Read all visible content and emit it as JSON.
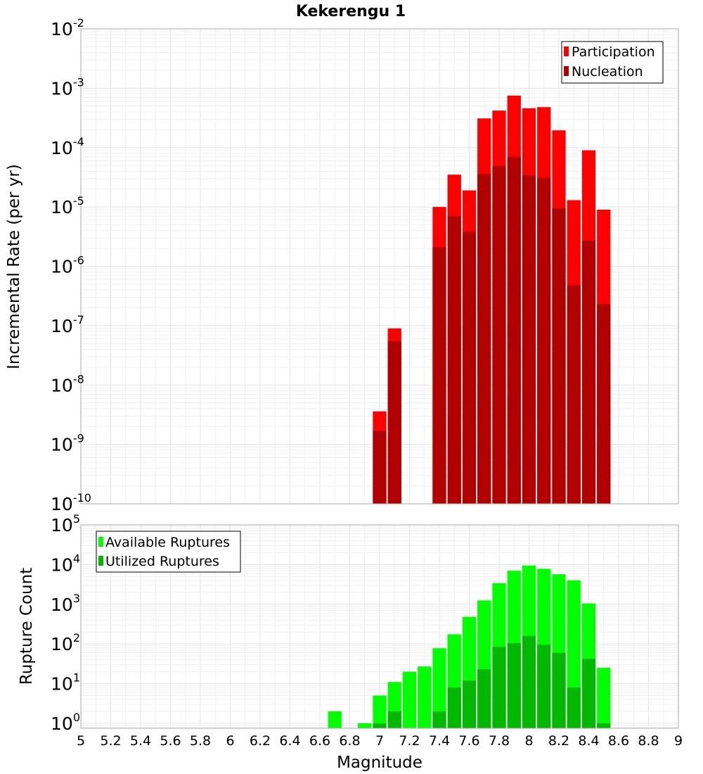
{
  "chart_data": [
    {
      "type": "bar",
      "title": "Kekerengu 1",
      "xlabel": "",
      "ylabel": "Incremental Rate (per yr)",
      "xlim": [
        5,
        9
      ],
      "ylim": [
        1e-10,
        0.01
      ],
      "yscale": "log",
      "ytick_exponents": [
        -10,
        -9,
        -8,
        -7,
        -6,
        -5,
        -4,
        -3,
        -2
      ],
      "bar_width": 0.1,
      "grid": true,
      "legend_position": "top-right",
      "x": [
        7.0,
        7.1,
        7.2,
        7.3,
        7.4,
        7.5,
        7.6,
        7.7,
        7.8,
        7.9,
        8.0,
        8.1,
        8.2,
        8.3,
        8.4,
        8.5
      ],
      "series": [
        {
          "name": "Participation",
          "color": "#ff0000",
          "values": [
            3.6e-09,
            9e-08,
            null,
            null,
            1e-05,
            3.5e-05,
            1.9e-05,
            0.00031,
            0.00042,
            0.00075,
            0.00046,
            0.00048,
            0.000195,
            1.3e-05,
            9e-05,
            9e-06
          ]
        },
        {
          "name": "Nucleation",
          "color": "#b20000",
          "values": [
            1.7e-09,
            5.5e-08,
            null,
            null,
            2.1e-06,
            7e-06,
            3.8e-06,
            3.6e-05,
            4.9e-05,
            7e-05,
            3.4e-05,
            3.1e-05,
            9.5e-06,
            4.8e-07,
            2.7e-06,
            2.3e-07
          ]
        }
      ]
    },
    {
      "type": "bar",
      "title": "",
      "xlabel": "Magnitude",
      "ylabel": "Rupture Count",
      "xlim": [
        5,
        9
      ],
      "ylim": [
        0.75,
        100000.0
      ],
      "yscale": "log",
      "ytick_exponents": [
        0,
        1,
        2,
        3,
        4,
        5
      ],
      "bar_width": 0.1,
      "grid": true,
      "legend_position": "top-left",
      "xticks": [
        "5",
        "5.2",
        "5.4",
        "5.6",
        "5.8",
        "6",
        "6.2",
        "6.4",
        "6.6",
        "6.8",
        "7",
        "7.2",
        "7.4",
        "7.6",
        "7.8",
        "8",
        "8.2",
        "8.4",
        "8.6",
        "8.8",
        "9"
      ],
      "x": [
        6.7,
        6.8,
        6.9,
        7.0,
        7.1,
        7.2,
        7.3,
        7.4,
        7.5,
        7.6,
        7.7,
        7.8,
        7.9,
        8.0,
        8.1,
        8.2,
        8.3,
        8.4,
        8.5
      ],
      "series": [
        {
          "name": "Available Ruptures",
          "color": "#00ff00",
          "values": [
            2,
            null,
            1,
            5,
            11,
            20,
            27,
            78,
            175,
            480,
            1250,
            3400,
            7000,
            9500,
            7800,
            5700,
            4000,
            1050,
            25
          ]
        },
        {
          "name": "Utilized Ruptures",
          "color": "#00b800",
          "values": [
            null,
            null,
            null,
            1,
            2,
            null,
            null,
            2,
            8,
            12,
            23,
            85,
            105,
            160,
            95,
            60,
            8,
            42,
            1
          ]
        }
      ]
    }
  ]
}
